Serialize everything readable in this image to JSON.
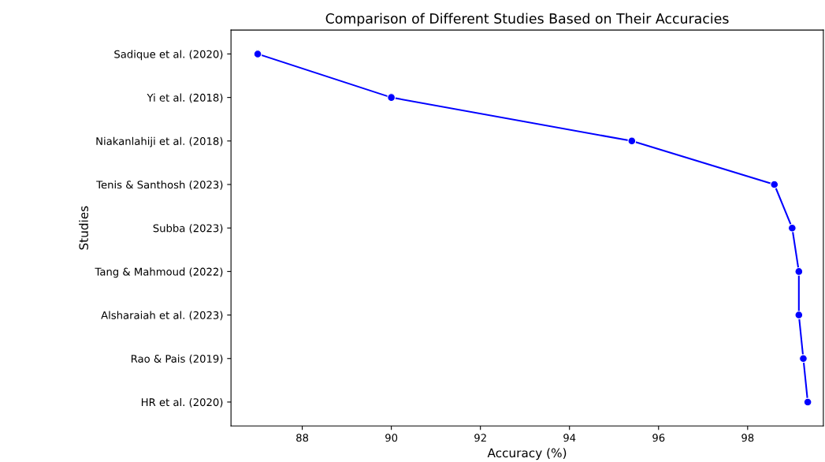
{
  "chart_data": {
    "type": "line",
    "title": "Comparison of Different Studies Based on Their Accuracies",
    "xlabel": "Accuracy (%)",
    "ylabel": "Studies",
    "orientation": "horizontal",
    "categories": [
      "Sadique et al. (2020)",
      "Yi et al. (2018)",
      "Niakanlahiji et al. (2018)",
      "Tenis & Santhosh (2023)",
      "Subba (2023)",
      "Tang & Mahmoud (2022)",
      "Alsharaiah et al. (2023)",
      "Rao & Pais (2019)",
      "HR et al. (2020)"
    ],
    "series": [
      {
        "color": "#0000ff",
        "values": [
          87.0,
          90.0,
          95.4,
          98.6,
          99.0,
          99.15,
          99.15,
          99.25,
          99.35
        ]
      }
    ],
    "xlim": [
      86.4,
      99.7
    ],
    "xticks": [
      88,
      90,
      92,
      94,
      96,
      98
    ],
    "grid": false,
    "marker": "circle",
    "line_style": "solid"
  }
}
